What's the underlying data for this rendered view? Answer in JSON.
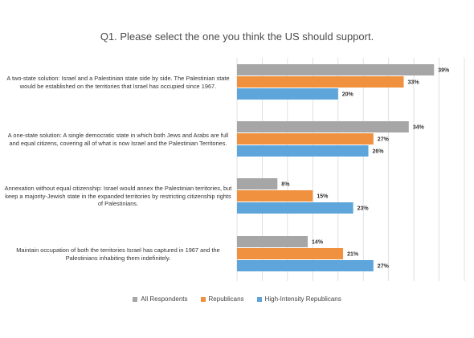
{
  "chart_data": {
    "type": "bar",
    "orientation": "horizontal",
    "title": "Q1. Please select the one you think the US should support.",
    "categories": [
      "A two-state solution: Israel and a Palestinian state side by side. The Palestinian state would be established on the territories that Israel has occupied since 1967.",
      "A one-state solution: A single democratic state in which both Jews and Arabs are full and equal citizens, covering all of what is now Israel and the Palestinian Territories.",
      "Annexation without equal citizenship: Israel would annex the Palestinian territories, but keep a majority-Jewish state in the expanded territories by restricting citizenship rights of Palestinians.",
      "Maintain occupation of both the territories Israel has captured in 1967 and the Palestinians inhabiting them indefinitely."
    ],
    "series": [
      {
        "name": "All Respondents",
        "color": "#a6a6a6",
        "values": [
          39,
          34,
          8,
          14
        ],
        "labels": [
          "39%",
          "34%",
          "8%",
          "14%"
        ]
      },
      {
        "name": "Republicans",
        "color": "#f0913f",
        "values": [
          33,
          27,
          15,
          21
        ],
        "labels": [
          "33%",
          "27%",
          "15%",
          "21%"
        ]
      },
      {
        "name": "High-Intensity Republicans",
        "color": "#5da5db",
        "values": [
          20,
          26,
          23,
          27
        ],
        "labels": [
          "20%",
          "26%",
          "23%",
          "27%"
        ]
      }
    ],
    "xlim": [
      0,
      45
    ],
    "grid": "vertical",
    "legend": "bottom"
  }
}
